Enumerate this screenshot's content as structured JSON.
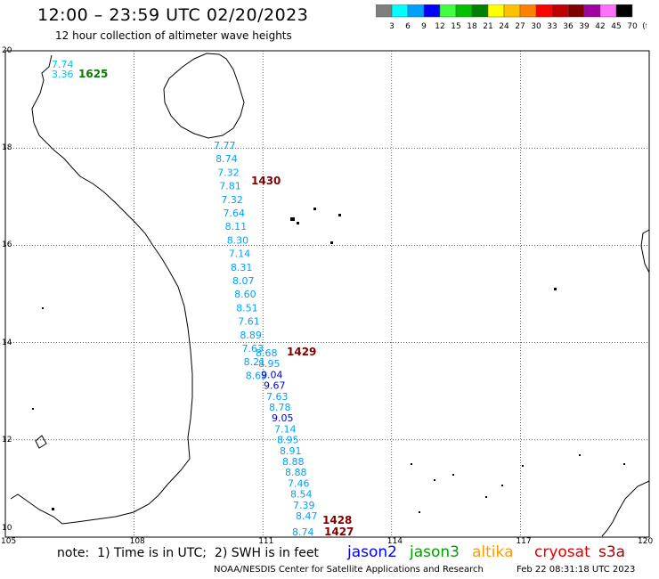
{
  "header": {
    "title": "12:00 – 23:59 UTC 02/20/2023",
    "subtitle": "12 hour collection of altimeter wave heights"
  },
  "scale": {
    "labels": [
      "3",
      "6",
      "9",
      "12",
      "15",
      "18",
      "21",
      "24",
      "27",
      "30",
      "33",
      "36",
      "39",
      "42",
      "45",
      "70",
      "(ft)"
    ],
    "colors": [
      "#7f7f7f",
      "#00ffff",
      "#00a0ff",
      "#0000ff",
      "#40ff40",
      "#00c000",
      "#008000",
      "#ffff00",
      "#ffc000",
      "#ff8000",
      "#ff0000",
      "#c00000",
      "#800000",
      "#a000a0",
      "#ff70ff",
      "#000000"
    ]
  },
  "axes": {
    "lon_labels": [
      "105",
      "108",
      "111",
      "114",
      "117",
      "120"
    ],
    "lat_labels": [
      "20",
      "18",
      "16",
      "14",
      "12",
      "10"
    ]
  },
  "map": {
    "tracks": [
      {
        "time": "1625",
        "time_color": "#008000",
        "points": [
          {
            "label": "7.74",
            "color": "#00c8e8"
          },
          {
            "label": "3.36",
            "color": "#00c8e8"
          }
        ]
      },
      {
        "time": "1430",
        "time_color": "#800000",
        "points": [
          {
            "label": "7.77",
            "color": "#00a0ff"
          },
          {
            "label": "8.74",
            "color": "#00a0ff"
          },
          {
            "label": "7.32",
            "color": "#00a0ff"
          },
          {
            "label": "7.81",
            "color": "#00a0ff"
          },
          {
            "label": "7.32",
            "color": "#00a0ff"
          },
          {
            "label": "7.64",
            "color": "#00a0ff"
          },
          {
            "label": "8.11",
            "color": "#00a0ff"
          },
          {
            "label": "8.30",
            "color": "#00a0ff"
          },
          {
            "label": "7.14",
            "color": "#00a0ff"
          },
          {
            "label": "8.31",
            "color": "#00a0ff"
          },
          {
            "label": "8.07",
            "color": "#00a0ff"
          },
          {
            "label": "8.60",
            "color": "#00a0ff"
          },
          {
            "label": "8.51",
            "color": "#00a0ff"
          },
          {
            "label": "7.61",
            "color": "#00a0ff"
          },
          {
            "label": "8.89",
            "color": "#00a0ff"
          },
          {
            "label": "7.63",
            "color": "#00a0ff"
          },
          {
            "label": "8.21",
            "color": "#00a0ff"
          },
          {
            "label": "8.69",
            "color": "#00a0ff"
          }
        ]
      },
      {
        "time": "1429",
        "time_color": "#800000",
        "points": [
          {
            "label": "8.68",
            "color": "#00a0ff"
          },
          {
            "label": "8.95",
            "color": "#00a0ff"
          },
          {
            "label": "9.04",
            "color": "#0000d0"
          },
          {
            "label": "9.67",
            "color": "#0000d0"
          },
          {
            "label": "7.63",
            "color": "#00a0ff"
          },
          {
            "label": "8.78",
            "color": "#00a0ff"
          },
          {
            "label": "9.05",
            "color": "#0000d0"
          },
          {
            "label": "7.14",
            "color": "#00a0ff"
          },
          {
            "label": "8.95",
            "color": "#00a0ff"
          },
          {
            "label": "8.91",
            "color": "#00a0ff"
          },
          {
            "label": "8.88",
            "color": "#00a0ff"
          },
          {
            "label": "8.88",
            "color": "#00a0ff"
          },
          {
            "label": "7.46",
            "color": "#00a0ff"
          },
          {
            "label": "8.54",
            "color": "#00a0ff"
          },
          {
            "label": "7.39",
            "color": "#00a0ff"
          },
          {
            "label": "8.47",
            "color": "#00a0ff"
          }
        ]
      },
      {
        "time": "1428",
        "time_color": "#800000",
        "points": []
      },
      {
        "time": "1427",
        "time_color": "#800000",
        "points": [
          {
            "label": "8.74",
            "color": "#00a0ff"
          }
        ]
      }
    ]
  },
  "footer": {
    "note": "note:  1) Time is in UTC;  2) SWH is in feet",
    "missions": [
      {
        "name": "jason2",
        "color": "#0000ff"
      },
      {
        "name": "jason3",
        "color": "#00a000"
      },
      {
        "name": "altika",
        "color": "#ff9900"
      },
      {
        "name": "cryosat",
        "color": "#e00000"
      },
      {
        "name": "s3a",
        "color": "#b00000"
      }
    ],
    "credit": "NOAA/NESDIS Center for Satellite Applications and Research",
    "timestamp": "Feb 22 08:31:18 UTC 2023"
  }
}
